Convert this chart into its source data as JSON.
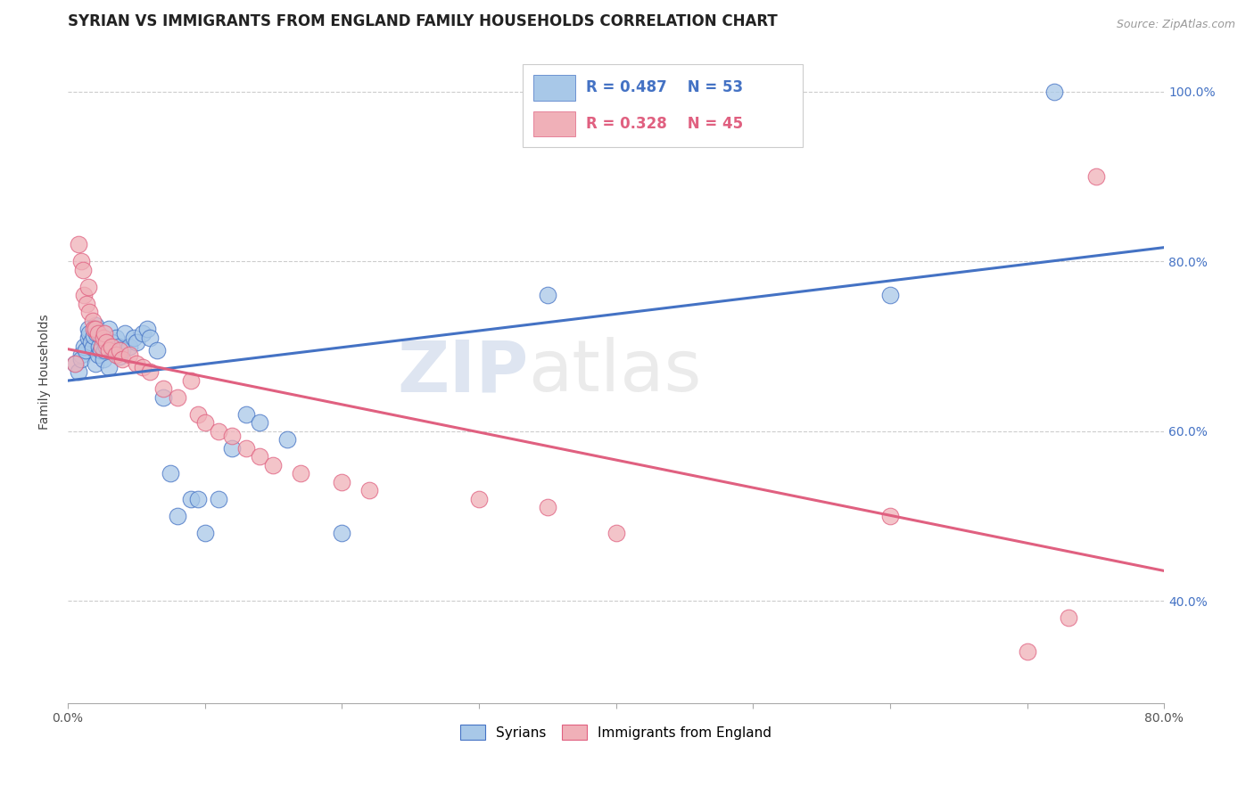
{
  "title": "SYRIAN VS IMMIGRANTS FROM ENGLAND FAMILY HOUSEHOLDS CORRELATION CHART",
  "source": "Source: ZipAtlas.com",
  "ylabel": "Family Households",
  "legend_labels": [
    "Syrians",
    "Immigrants from England"
  ],
  "blue_R": 0.487,
  "blue_N": 53,
  "pink_R": 0.328,
  "pink_N": 45,
  "xlim": [
    0.0,
    0.8
  ],
  "ylim": [
    0.28,
    1.06
  ],
  "ytick_labels": [
    "40.0%",
    "60.0%",
    "80.0%",
    "100.0%"
  ],
  "ytick_values": [
    0.4,
    0.6,
    0.8,
    1.0
  ],
  "xtick_values": [
    0.0,
    0.1,
    0.2,
    0.3,
    0.4,
    0.5,
    0.6,
    0.7,
    0.8
  ],
  "xtick_labels": [
    "0.0%",
    "",
    "",
    "",
    "",
    "",
    "",
    "",
    "80.0%"
  ],
  "blue_color": "#A8C8E8",
  "pink_color": "#F0B0B8",
  "blue_line_color": "#4472C4",
  "pink_line_color": "#E06080",
  "watermark_zip": "ZIP",
  "watermark_atlas": "atlas",
  "title_fontsize": 12,
  "axis_label_fontsize": 10,
  "tick_fontsize": 10,
  "legend_fontsize": 12,
  "blue_scatter_x": [
    0.005,
    0.008,
    0.01,
    0.01,
    0.012,
    0.013,
    0.015,
    0.015,
    0.016,
    0.017,
    0.018,
    0.019,
    0.02,
    0.02,
    0.021,
    0.022,
    0.023,
    0.024,
    0.025,
    0.026,
    0.027,
    0.028,
    0.03,
    0.03,
    0.032,
    0.033,
    0.035,
    0.037,
    0.038,
    0.04,
    0.042,
    0.045,
    0.048,
    0.05,
    0.055,
    0.058,
    0.06,
    0.065,
    0.07,
    0.075,
    0.08,
    0.09,
    0.095,
    0.1,
    0.11,
    0.12,
    0.13,
    0.14,
    0.16,
    0.2,
    0.35,
    0.6,
    0.72
  ],
  "blue_scatter_y": [
    0.68,
    0.67,
    0.69,
    0.685,
    0.7,
    0.695,
    0.71,
    0.72,
    0.715,
    0.705,
    0.698,
    0.712,
    0.725,
    0.68,
    0.715,
    0.69,
    0.7,
    0.695,
    0.71,
    0.685,
    0.695,
    0.7,
    0.72,
    0.675,
    0.705,
    0.695,
    0.71,
    0.7,
    0.688,
    0.695,
    0.715,
    0.7,
    0.71,
    0.705,
    0.715,
    0.72,
    0.71,
    0.695,
    0.64,
    0.55,
    0.5,
    0.52,
    0.52,
    0.48,
    0.52,
    0.58,
    0.62,
    0.61,
    0.59,
    0.48,
    0.76,
    0.76,
    1.0
  ],
  "pink_scatter_x": [
    0.005,
    0.008,
    0.01,
    0.011,
    0.012,
    0.014,
    0.015,
    0.016,
    0.018,
    0.019,
    0.02,
    0.022,
    0.025,
    0.026,
    0.027,
    0.028,
    0.03,
    0.032,
    0.035,
    0.038,
    0.04,
    0.045,
    0.05,
    0.055,
    0.06,
    0.07,
    0.08,
    0.09,
    0.095,
    0.1,
    0.11,
    0.12,
    0.13,
    0.14,
    0.15,
    0.17,
    0.2,
    0.22,
    0.3,
    0.35,
    0.4,
    0.6,
    0.7,
    0.73,
    0.75
  ],
  "pink_scatter_y": [
    0.68,
    0.82,
    0.8,
    0.79,
    0.76,
    0.75,
    0.77,
    0.74,
    0.73,
    0.72,
    0.72,
    0.715,
    0.7,
    0.71,
    0.715,
    0.705,
    0.695,
    0.7,
    0.69,
    0.695,
    0.685,
    0.69,
    0.68,
    0.675,
    0.67,
    0.65,
    0.64,
    0.66,
    0.62,
    0.61,
    0.6,
    0.595,
    0.58,
    0.57,
    0.56,
    0.55,
    0.54,
    0.53,
    0.52,
    0.51,
    0.48,
    0.5,
    0.34,
    0.38,
    0.9
  ]
}
